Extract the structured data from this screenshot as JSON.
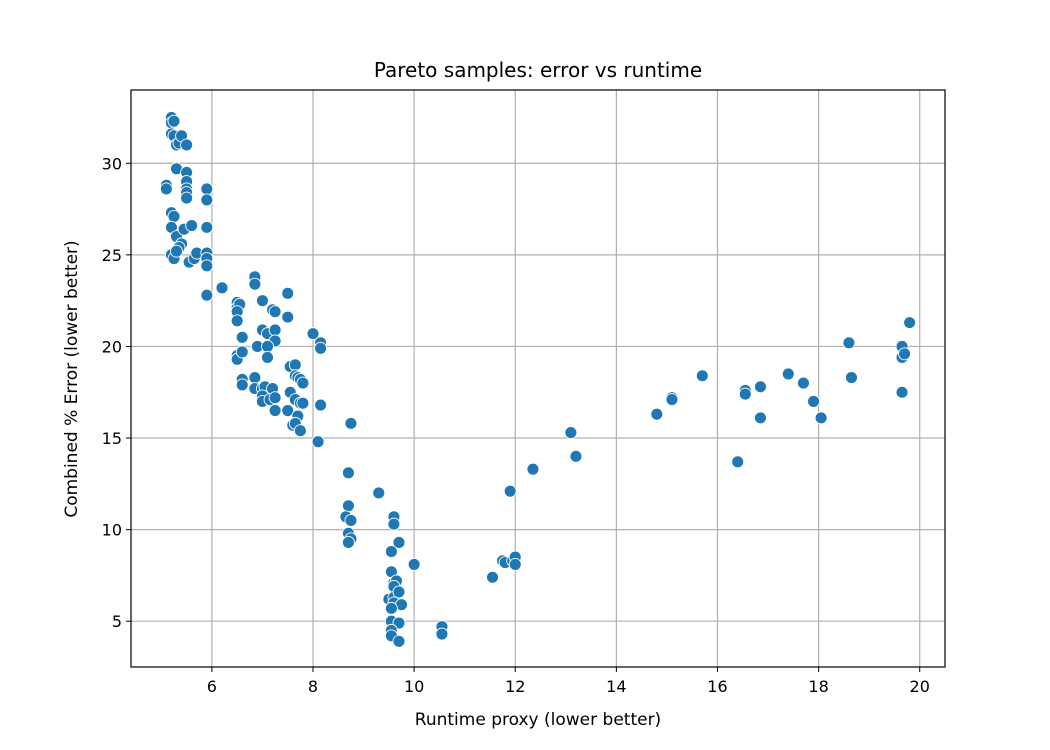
{
  "chart_data": {
    "type": "scatter",
    "title": "Pareto samples: error vs runtime",
    "xlabel": "Runtime proxy (lower better)",
    "ylabel": "Combined % Error (lower better)",
    "xlim": [
      4.4,
      20.5
    ],
    "ylim": [
      2.5,
      34.0
    ],
    "xticks": [
      6,
      8,
      10,
      12,
      14,
      16,
      18,
      20
    ],
    "yticks": [
      5,
      10,
      15,
      20,
      25,
      30
    ],
    "grid": true,
    "marker_color": "#1f77b4",
    "points": [
      [
        5.1,
        28.8
      ],
      [
        5.1,
        28.6
      ],
      [
        5.2,
        32.5
      ],
      [
        5.2,
        32.2
      ],
      [
        5.25,
        32.3
      ],
      [
        5.2,
        31.6
      ],
      [
        5.25,
        31.5
      ],
      [
        5.3,
        31.0
      ],
      [
        5.35,
        31.1
      ],
      [
        5.4,
        31.5
      ],
      [
        5.5,
        31.0
      ],
      [
        5.3,
        29.7
      ],
      [
        5.5,
        29.5
      ],
      [
        5.5,
        29.0
      ],
      [
        5.5,
        28.6
      ],
      [
        5.5,
        28.4
      ],
      [
        5.5,
        28.1
      ],
      [
        5.9,
        28.6
      ],
      [
        5.9,
        28.0
      ],
      [
        5.2,
        27.3
      ],
      [
        5.25,
        27.1
      ],
      [
        5.2,
        26.5
      ],
      [
        5.3,
        26.0
      ],
      [
        5.45,
        26.4
      ],
      [
        5.6,
        26.6
      ],
      [
        5.9,
        26.5
      ],
      [
        5.4,
        25.6
      ],
      [
        5.35,
        25.4
      ],
      [
        5.2,
        25.0
      ],
      [
        5.25,
        24.8
      ],
      [
        5.3,
        25.2
      ],
      [
        5.55,
        24.6
      ],
      [
        5.65,
        24.8
      ],
      [
        5.7,
        25.1
      ],
      [
        5.9,
        25.1
      ],
      [
        5.9,
        24.8
      ],
      [
        5.9,
        24.4
      ],
      [
        5.9,
        22.8
      ],
      [
        6.2,
        23.2
      ],
      [
        6.5,
        22.4
      ],
      [
        6.5,
        22.1
      ],
      [
        6.55,
        22.3
      ],
      [
        6.5,
        21.9
      ],
      [
        6.5,
        21.4
      ],
      [
        6.5,
        19.5
      ],
      [
        6.5,
        19.3
      ],
      [
        6.6,
        19.7
      ],
      [
        6.6,
        20.5
      ],
      [
        6.6,
        18.2
      ],
      [
        6.6,
        17.9
      ],
      [
        6.85,
        23.8
      ],
      [
        6.85,
        23.4
      ],
      [
        7.0,
        22.5
      ],
      [
        7.2,
        22.0
      ],
      [
        7.25,
        21.9
      ],
      [
        7.5,
        22.9
      ],
      [
        7.5,
        21.6
      ],
      [
        7.0,
        20.9
      ],
      [
        7.1,
        20.7
      ],
      [
        7.25,
        20.9
      ],
      [
        7.25,
        20.3
      ],
      [
        6.9,
        20.0
      ],
      [
        7.1,
        20.0
      ],
      [
        7.1,
        19.4
      ],
      [
        6.85,
        18.3
      ],
      [
        6.85,
        17.7
      ],
      [
        7.0,
        17.7
      ],
      [
        7.05,
        17.8
      ],
      [
        7.2,
        17.7
      ],
      [
        7.0,
        17.3
      ],
      [
        7.0,
        17.0
      ],
      [
        7.15,
        17.1
      ],
      [
        7.25,
        17.2
      ],
      [
        7.25,
        16.5
      ],
      [
        7.5,
        16.5
      ],
      [
        7.55,
        18.9
      ],
      [
        7.65,
        19.0
      ],
      [
        7.55,
        17.5
      ],
      [
        7.65,
        18.4
      ],
      [
        7.7,
        18.3
      ],
      [
        7.75,
        18.2
      ],
      [
        7.8,
        18.0
      ],
      [
        7.65,
        17.1
      ],
      [
        7.75,
        16.9
      ],
      [
        7.8,
        16.9
      ],
      [
        7.7,
        16.2
      ],
      [
        7.6,
        15.7
      ],
      [
        7.65,
        15.8
      ],
      [
        7.75,
        15.4
      ],
      [
        8.0,
        20.7
      ],
      [
        8.15,
        20.2
      ],
      [
        8.15,
        19.9
      ],
      [
        8.15,
        16.8
      ],
      [
        8.1,
        14.8
      ],
      [
        8.75,
        15.8
      ],
      [
        8.7,
        13.1
      ],
      [
        8.7,
        11.3
      ],
      [
        8.65,
        10.7
      ],
      [
        8.75,
        10.5
      ],
      [
        8.7,
        9.8
      ],
      [
        8.75,
        9.5
      ],
      [
        8.7,
        9.3
      ],
      [
        9.3,
        12.0
      ],
      [
        9.6,
        10.7
      ],
      [
        9.6,
        10.3
      ],
      [
        9.7,
        9.3
      ],
      [
        9.55,
        8.8
      ],
      [
        10.0,
        8.1
      ],
      [
        9.55,
        7.7
      ],
      [
        9.6,
        7.1
      ],
      [
        9.65,
        7.2
      ],
      [
        9.6,
        6.9
      ],
      [
        9.5,
        6.2
      ],
      [
        9.6,
        6.3
      ],
      [
        9.7,
        6.6
      ],
      [
        9.6,
        6.0
      ],
      [
        9.75,
        5.9
      ],
      [
        9.55,
        5.7
      ],
      [
        9.55,
        5.0
      ],
      [
        9.7,
        4.9
      ],
      [
        9.55,
        4.5
      ],
      [
        9.55,
        4.2
      ],
      [
        9.7,
        3.9
      ],
      [
        10.55,
        4.7
      ],
      [
        10.55,
        4.3
      ],
      [
        11.55,
        7.4
      ],
      [
        11.75,
        8.3
      ],
      [
        11.8,
        8.2
      ],
      [
        11.95,
        8.3
      ],
      [
        12.0,
        8.5
      ],
      [
        12.0,
        8.1
      ],
      [
        11.9,
        12.1
      ],
      [
        12.35,
        13.3
      ],
      [
        13.1,
        15.3
      ],
      [
        13.2,
        14.0
      ],
      [
        14.8,
        16.3
      ],
      [
        15.1,
        17.2
      ],
      [
        15.1,
        17.1
      ],
      [
        15.7,
        18.4
      ],
      [
        16.4,
        13.7
      ],
      [
        16.55,
        17.6
      ],
      [
        16.55,
        17.4
      ],
      [
        16.85,
        17.8
      ],
      [
        16.85,
        16.1
      ],
      [
        17.4,
        18.5
      ],
      [
        17.7,
        18.0
      ],
      [
        17.9,
        17.0
      ],
      [
        18.05,
        16.1
      ],
      [
        18.6,
        20.2
      ],
      [
        18.65,
        18.3
      ],
      [
        19.65,
        20.0
      ],
      [
        19.65,
        19.4
      ],
      [
        19.7,
        19.6
      ],
      [
        19.65,
        17.5
      ],
      [
        19.8,
        21.3
      ]
    ]
  }
}
